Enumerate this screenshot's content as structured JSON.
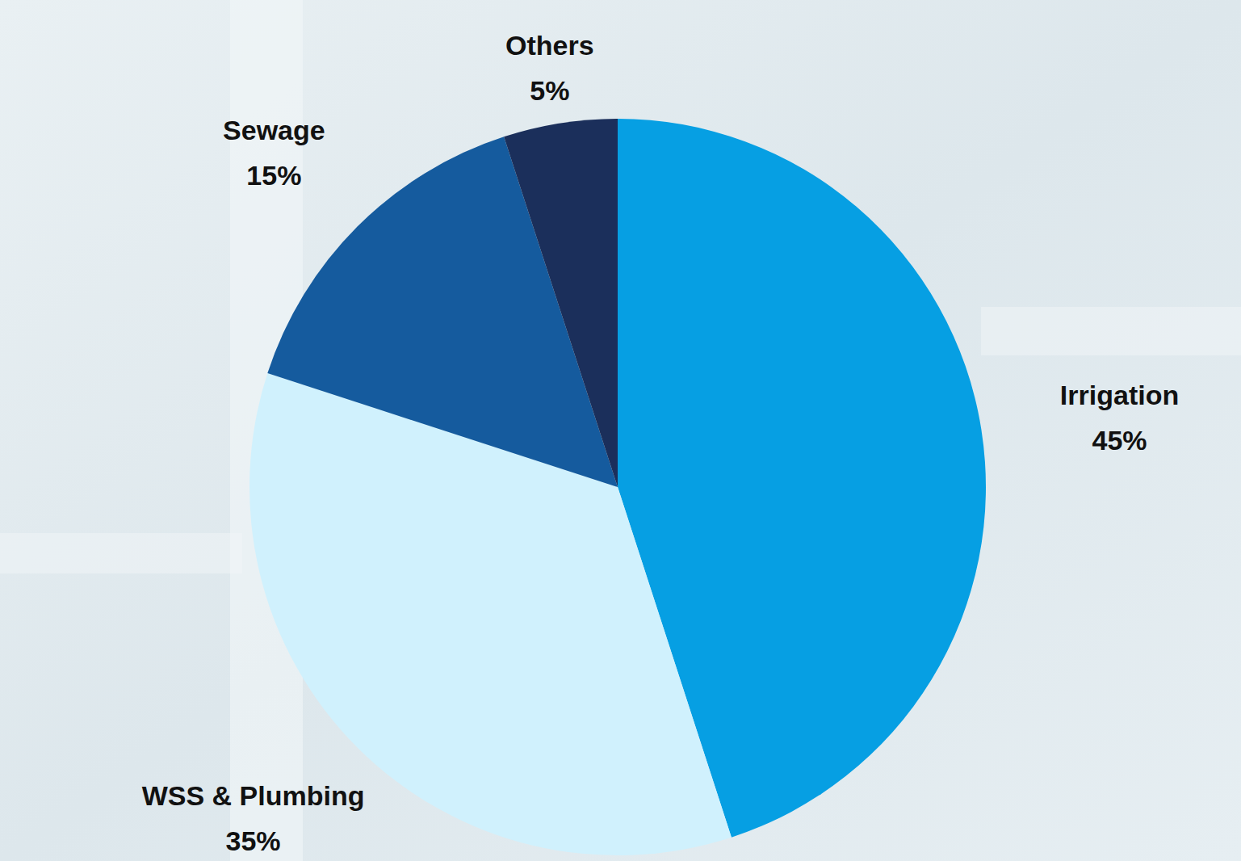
{
  "chart_data": {
    "type": "pie",
    "categories": [
      "Irrigation",
      "WSS & Plumbing",
      "Sewage",
      "Others"
    ],
    "values": [
      45,
      35,
      15,
      5
    ],
    "value_labels": [
      "45%",
      "35%",
      "15%",
      "5%"
    ],
    "colors": [
      "#069fe3",
      "#d0f1fd",
      "#155b9e",
      "#1b2f5b"
    ],
    "data_labels": true
  }
}
